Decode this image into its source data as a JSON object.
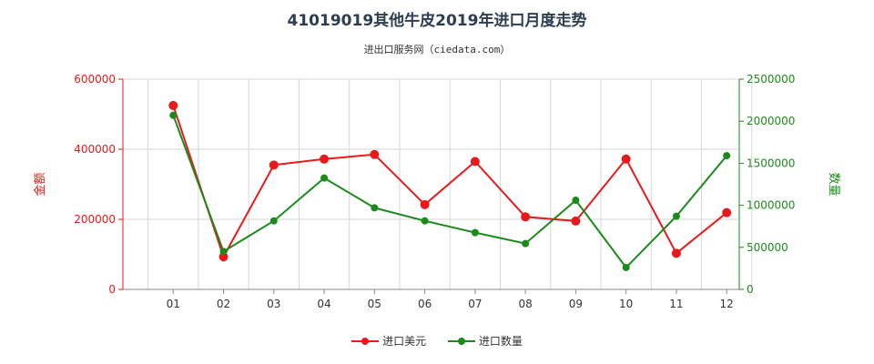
{
  "title": "41019019其他牛皮2019年进口月度走势",
  "subtitle": "进出口服务网（ciedata.com）",
  "colors": {
    "usd": "#e8191b",
    "qty": "#1a8a1a"
  },
  "chart_data": {
    "type": "line",
    "categories": [
      "01",
      "02",
      "03",
      "04",
      "05",
      "06",
      "07",
      "08",
      "09",
      "10",
      "11",
      "12"
    ],
    "y_left": {
      "label": "金额",
      "ticks": [
        "0",
        "200000",
        "400000",
        "600000"
      ],
      "range": [
        0,
        600000
      ]
    },
    "y_right": {
      "label": "数量",
      "ticks": [
        "0",
        "500000",
        "1000000",
        "1500000",
        "2000000",
        "2500000"
      ],
      "range": [
        0,
        2500000
      ]
    },
    "series": [
      {
        "name": "进口美元",
        "axis": "left",
        "values": [
          525000,
          93000,
          355000,
          372000,
          385000,
          242000,
          365000,
          207000,
          195000,
          372000,
          103000,
          219000
        ]
      },
      {
        "name": "进口数量",
        "axis": "right",
        "values": [
          2070000,
          450000,
          815000,
          1325000,
          970000,
          815000,
          675000,
          545000,
          1060000,
          260000,
          870000,
          1590000
        ]
      }
    ]
  }
}
